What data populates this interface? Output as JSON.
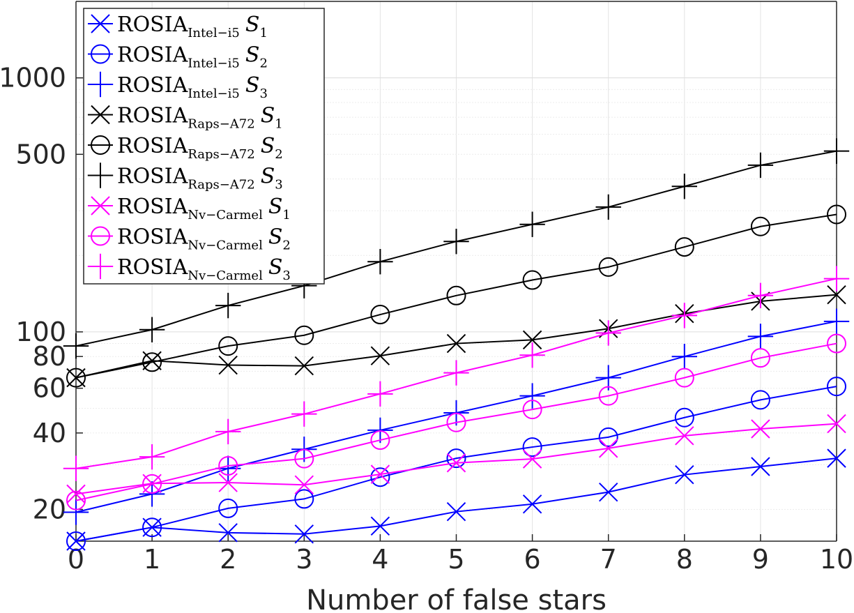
{
  "chart_data": {
    "type": "line",
    "title": "",
    "xlabel": "Number of false stars",
    "ylabel": "",
    "y_scale": "log",
    "xlim": [
      0,
      10
    ],
    "ylim": [
      15,
      2000
    ],
    "x": [
      0,
      1,
      2,
      3,
      4,
      5,
      6,
      7,
      8,
      9,
      10
    ],
    "x_ticks": [
      "0",
      "1",
      "2",
      "3",
      "4",
      "5",
      "6",
      "7",
      "8",
      "9",
      "10"
    ],
    "y_ticks": [
      {
        "value": 20,
        "label": "20"
      },
      {
        "value": 40,
        "label": "40"
      },
      {
        "value": 60,
        "label": "60"
      },
      {
        "value": 80,
        "label": "80"
      },
      {
        "value": 100,
        "label": "100"
      },
      {
        "value": 500,
        "label": "500"
      },
      {
        "value": 1000,
        "label": "1000"
      }
    ],
    "grid": true,
    "legend_position": "top-left",
    "series": [
      {
        "name": "ROSIA",
        "sub": "Intel−i5",
        "set": "S",
        "set_index": "1",
        "color": "#0000ff",
        "marker": "x",
        "values": [
          15,
          17,
          16.2,
          16,
          17.2,
          19.6,
          21,
          23.4,
          27.4,
          29.5,
          31.8
        ]
      },
      {
        "name": "ROSIA",
        "sub": "Intel−i5",
        "set": "S",
        "set_index": "2",
        "color": "#0000ff",
        "marker": "o",
        "values": [
          15,
          17,
          20.2,
          22,
          26.8,
          31.8,
          35.2,
          38.5,
          46,
          54,
          61
        ]
      },
      {
        "name": "ROSIA",
        "sub": "Intel−i5",
        "set": "S",
        "set_index": "3",
        "color": "#0000ff",
        "marker": "+",
        "values": [
          19.5,
          23,
          29,
          34.5,
          41,
          48,
          56,
          66,
          80,
          96,
          110
        ]
      },
      {
        "name": "ROSIA",
        "sub": "Raps−A72",
        "set": "S",
        "set_index": "1",
        "color": "#000000",
        "marker": "x",
        "values": [
          66,
          77,
          74,
          73.5,
          80.5,
          90,
          93,
          103,
          118,
          132,
          140
        ]
      },
      {
        "name": "ROSIA",
        "sub": "Raps−A72",
        "set": "S",
        "set_index": "2",
        "color": "#000000",
        "marker": "o",
        "values": [
          66,
          76,
          88,
          97,
          117,
          139,
          160,
          180,
          216,
          260,
          290
        ]
      },
      {
        "name": "ROSIA",
        "sub": "Raps−A72",
        "set": "S",
        "set_index": "3",
        "color": "#000000",
        "marker": "+",
        "values": [
          88,
          102,
          127,
          152,
          189,
          227,
          265,
          310,
          374,
          453,
          515
        ]
      },
      {
        "name": "ROSIA",
        "sub": "Nv−Carmel",
        "set": "S",
        "set_index": "1",
        "color": "#ff00ff",
        "marker": "x",
        "values": [
          23,
          25.3,
          25.5,
          25,
          27.5,
          30.5,
          31.6,
          34.8,
          39,
          41.5,
          43.5
        ]
      },
      {
        "name": "ROSIA",
        "sub": "Nv−Carmel",
        "set": "S",
        "set_index": "2",
        "color": "#ff00ff",
        "marker": "o",
        "values": [
          21.7,
          25.2,
          29.7,
          31.7,
          37.5,
          44,
          49.5,
          56,
          66,
          79,
          90
        ]
      },
      {
        "name": "ROSIA",
        "sub": "Nv−Carmel",
        "set": "S",
        "set_index": "3",
        "color": "#ff00ff",
        "marker": "+",
        "values": [
          29,
          32.2,
          40.5,
          47.5,
          57,
          69,
          81,
          99,
          116,
          139,
          162
        ]
      }
    ]
  }
}
